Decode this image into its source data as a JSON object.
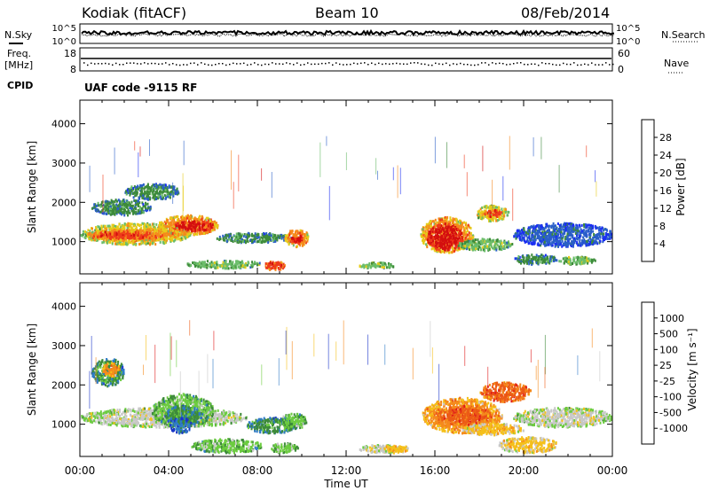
{
  "header": {
    "title": "Kodiak (fitACF)",
    "beam": "Beam 10",
    "date": "08/Feb/2014"
  },
  "labels": {
    "nsky": "N.Sky",
    "nsearch": "N.Search",
    "freq_line1": "Freq.",
    "freq_line2": "[MHz]",
    "nave": "Nave",
    "cpid": "CPID",
    "program": "UAF code -9115 RF",
    "noise_left_ticks": [
      "10^5",
      "10^0"
    ],
    "noise_right_ticks": [
      "10^5",
      "10^0"
    ],
    "freq_ticks": [
      "18",
      "8"
    ],
    "nave_ticks": [
      "60",
      "0"
    ]
  },
  "chart_data": [
    {
      "type": "heatmap",
      "title": "",
      "xlabel": "",
      "ylabel": "Slant Range [km]",
      "colorbar_label": "Power [dB]",
      "xlim": [
        0,
        24
      ],
      "ylim": [
        180,
        4600
      ],
      "yticks": [
        1000,
        2000,
        3000,
        4000
      ],
      "colorbar": {
        "ticks": [
          "4",
          "8",
          "12",
          "16",
          "20",
          "24",
          "28"
        ],
        "colors": [
          "#1a2ef2",
          "#2a5fc8",
          "#3d8a3a",
          "#6bbd6a",
          "#e6cc1a",
          "#f5891c",
          "#ee3a1a",
          "#d40f0f"
        ]
      },
      "regions": [
        {
          "x": [
            0.0,
            5.0
          ],
          "y": [
            950,
            1500
          ],
          "level": 4
        },
        {
          "x": [
            0.3,
            4.5
          ],
          "y": [
            1050,
            1350
          ],
          "level": 5
        },
        {
          "x": [
            0.5,
            3.5
          ],
          "y": [
            1100,
            1300
          ],
          "level": 6
        },
        {
          "x": [
            3.5,
            6.2
          ],
          "y": [
            1200,
            1700
          ],
          "level": 5
        },
        {
          "x": [
            4.2,
            6.0
          ],
          "y": [
            1300,
            1550
          ],
          "level": 7
        },
        {
          "x": [
            0.5,
            3.2
          ],
          "y": [
            1700,
            2100
          ],
          "level": 2
        },
        {
          "x": [
            2.0,
            4.5
          ],
          "y": [
            2100,
            2500
          ],
          "level": 2
        },
        {
          "x": [
            6.0,
            9.5
          ],
          "y": [
            1000,
            1250
          ],
          "level": 2
        },
        {
          "x": [
            9.2,
            10.3
          ],
          "y": [
            900,
            1350
          ],
          "level": 5
        },
        {
          "x": [
            9.5,
            10.0
          ],
          "y": [
            1000,
            1200
          ],
          "level": 7
        },
        {
          "x": [
            4.8,
            8.2
          ],
          "y": [
            350,
            550
          ],
          "level": 3
        },
        {
          "x": [
            8.3,
            9.2
          ],
          "y": [
            300,
            550
          ],
          "level": 6
        },
        {
          "x": [
            12.5,
            14.2
          ],
          "y": [
            350,
            500
          ],
          "level": 3
        },
        {
          "x": [
            15.3,
            17.7
          ],
          "y": [
            750,
            1650
          ],
          "level": 5
        },
        {
          "x": [
            15.6,
            17.2
          ],
          "y": [
            800,
            1500
          ],
          "level": 7
        },
        {
          "x": [
            17.0,
            19.5
          ],
          "y": [
            800,
            1100
          ],
          "level": 3
        },
        {
          "x": [
            17.8,
            19.3
          ],
          "y": [
            1550,
            1950
          ],
          "level": 4
        },
        {
          "x": [
            18.2,
            19.0
          ],
          "y": [
            1650,
            1850
          ],
          "level": 6
        },
        {
          "x": [
            19.5,
            24.0
          ],
          "y": [
            900,
            1500
          ],
          "level": 1
        },
        {
          "x": [
            19.5,
            21.5
          ],
          "y": [
            450,
            700
          ],
          "level": 2
        },
        {
          "x": [
            21.5,
            23.2
          ],
          "y": [
            450,
            650
          ],
          "level": 3
        }
      ]
    },
    {
      "type": "heatmap",
      "title": "",
      "xlabel": "Time UT",
      "ylabel": "Slant Range [km]",
      "colorbar_label": "Velocity [m s⁻¹]",
      "xlim": [
        0,
        24
      ],
      "ylim": [
        180,
        4600
      ],
      "yticks": [
        1000,
        2000,
        3000,
        4000
      ],
      "xticks": [
        "00:00",
        "04:00",
        "08:00",
        "12:00",
        "16:00",
        "20:00",
        "00:00"
      ],
      "colorbar": {
        "ticks": [
          "1000",
          "500",
          "100",
          "25",
          "-25",
          "-100",
          "-500",
          "-1000"
        ],
        "colors": [
          "#1a35c8",
          "#2e7ac8",
          "#3d8a3a",
          "#6ccc40",
          "#c8c8c8",
          "#f5c01a",
          "#f58a1c",
          "#ec5a16",
          "#e01a1a"
        ]
      },
      "regions": [
        {
          "x": [
            0.0,
            7.5
          ],
          "y": [
            950,
            1450
          ],
          "level": 4
        },
        {
          "x": [
            3.2,
            6.0
          ],
          "y": [
            950,
            1800
          ],
          "level": 3
        },
        {
          "x": [
            3.8,
            5.5
          ],
          "y": [
            1000,
            1500
          ],
          "level": 2
        },
        {
          "x": [
            4.0,
            5.0
          ],
          "y": [
            800,
            1200
          ],
          "level": 1
        },
        {
          "x": [
            5.0,
            8.2
          ],
          "y": [
            300,
            650
          ],
          "level": 3
        },
        {
          "x": [
            7.5,
            9.8
          ],
          "y": [
            800,
            1200
          ],
          "level": 2
        },
        {
          "x": [
            9.0,
            10.2
          ],
          "y": [
            900,
            1300
          ],
          "level": 3
        },
        {
          "x": [
            8.5,
            9.8
          ],
          "y": [
            300,
            550
          ],
          "level": 3
        },
        {
          "x": [
            12.5,
            14.5
          ],
          "y": [
            300,
            500
          ],
          "level": 4
        },
        {
          "x": [
            13.5,
            14.8
          ],
          "y": [
            300,
            500
          ],
          "level": 5
        },
        {
          "x": [
            15.4,
            19.0
          ],
          "y": [
            800,
            1700
          ],
          "level": 6
        },
        {
          "x": [
            16.0,
            18.5
          ],
          "y": [
            1000,
            1500
          ],
          "level": 7
        },
        {
          "x": [
            17.2,
            20.0
          ],
          "y": [
            750,
            1050
          ],
          "level": 5
        },
        {
          "x": [
            18.0,
            20.3
          ],
          "y": [
            1600,
            2100
          ],
          "level": 7
        },
        {
          "x": [
            18.8,
            21.5
          ],
          "y": [
            300,
            700
          ],
          "level": 5
        },
        {
          "x": [
            19.5,
            24.0
          ],
          "y": [
            950,
            1450
          ],
          "level": 4
        },
        {
          "x": [
            0.5,
            2.0
          ],
          "y": [
            2000,
            2700
          ],
          "level": 2
        },
        {
          "x": [
            1.0,
            1.8
          ],
          "y": [
            2250,
            2600
          ],
          "level": 6
        }
      ]
    }
  ]
}
